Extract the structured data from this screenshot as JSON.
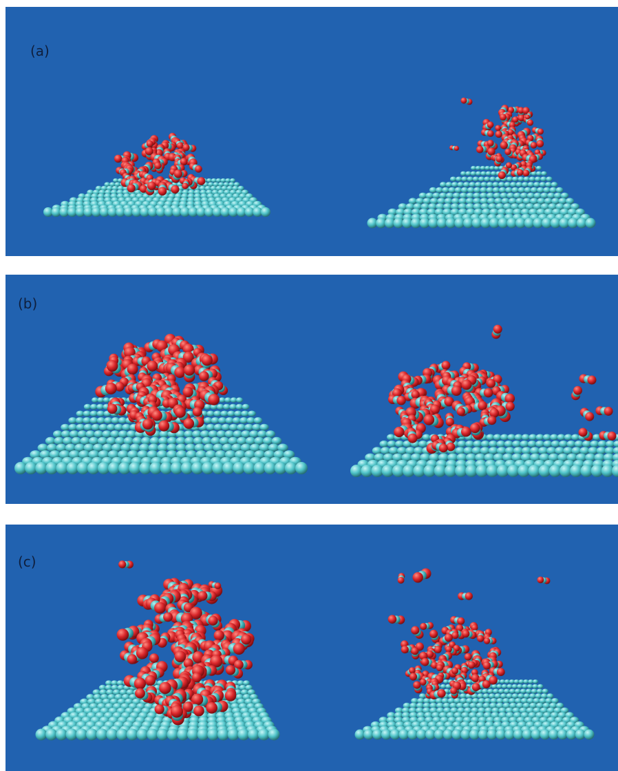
{
  "colors": {
    "background": "#2162b0",
    "substrate": "#4fc3c8",
    "oxygen": "#d9262a",
    "carbon": "#48b8bd"
  },
  "panels": [
    {
      "label": "(a)"
    },
    {
      "label": "(b)"
    },
    {
      "label": "(c)"
    }
  ]
}
